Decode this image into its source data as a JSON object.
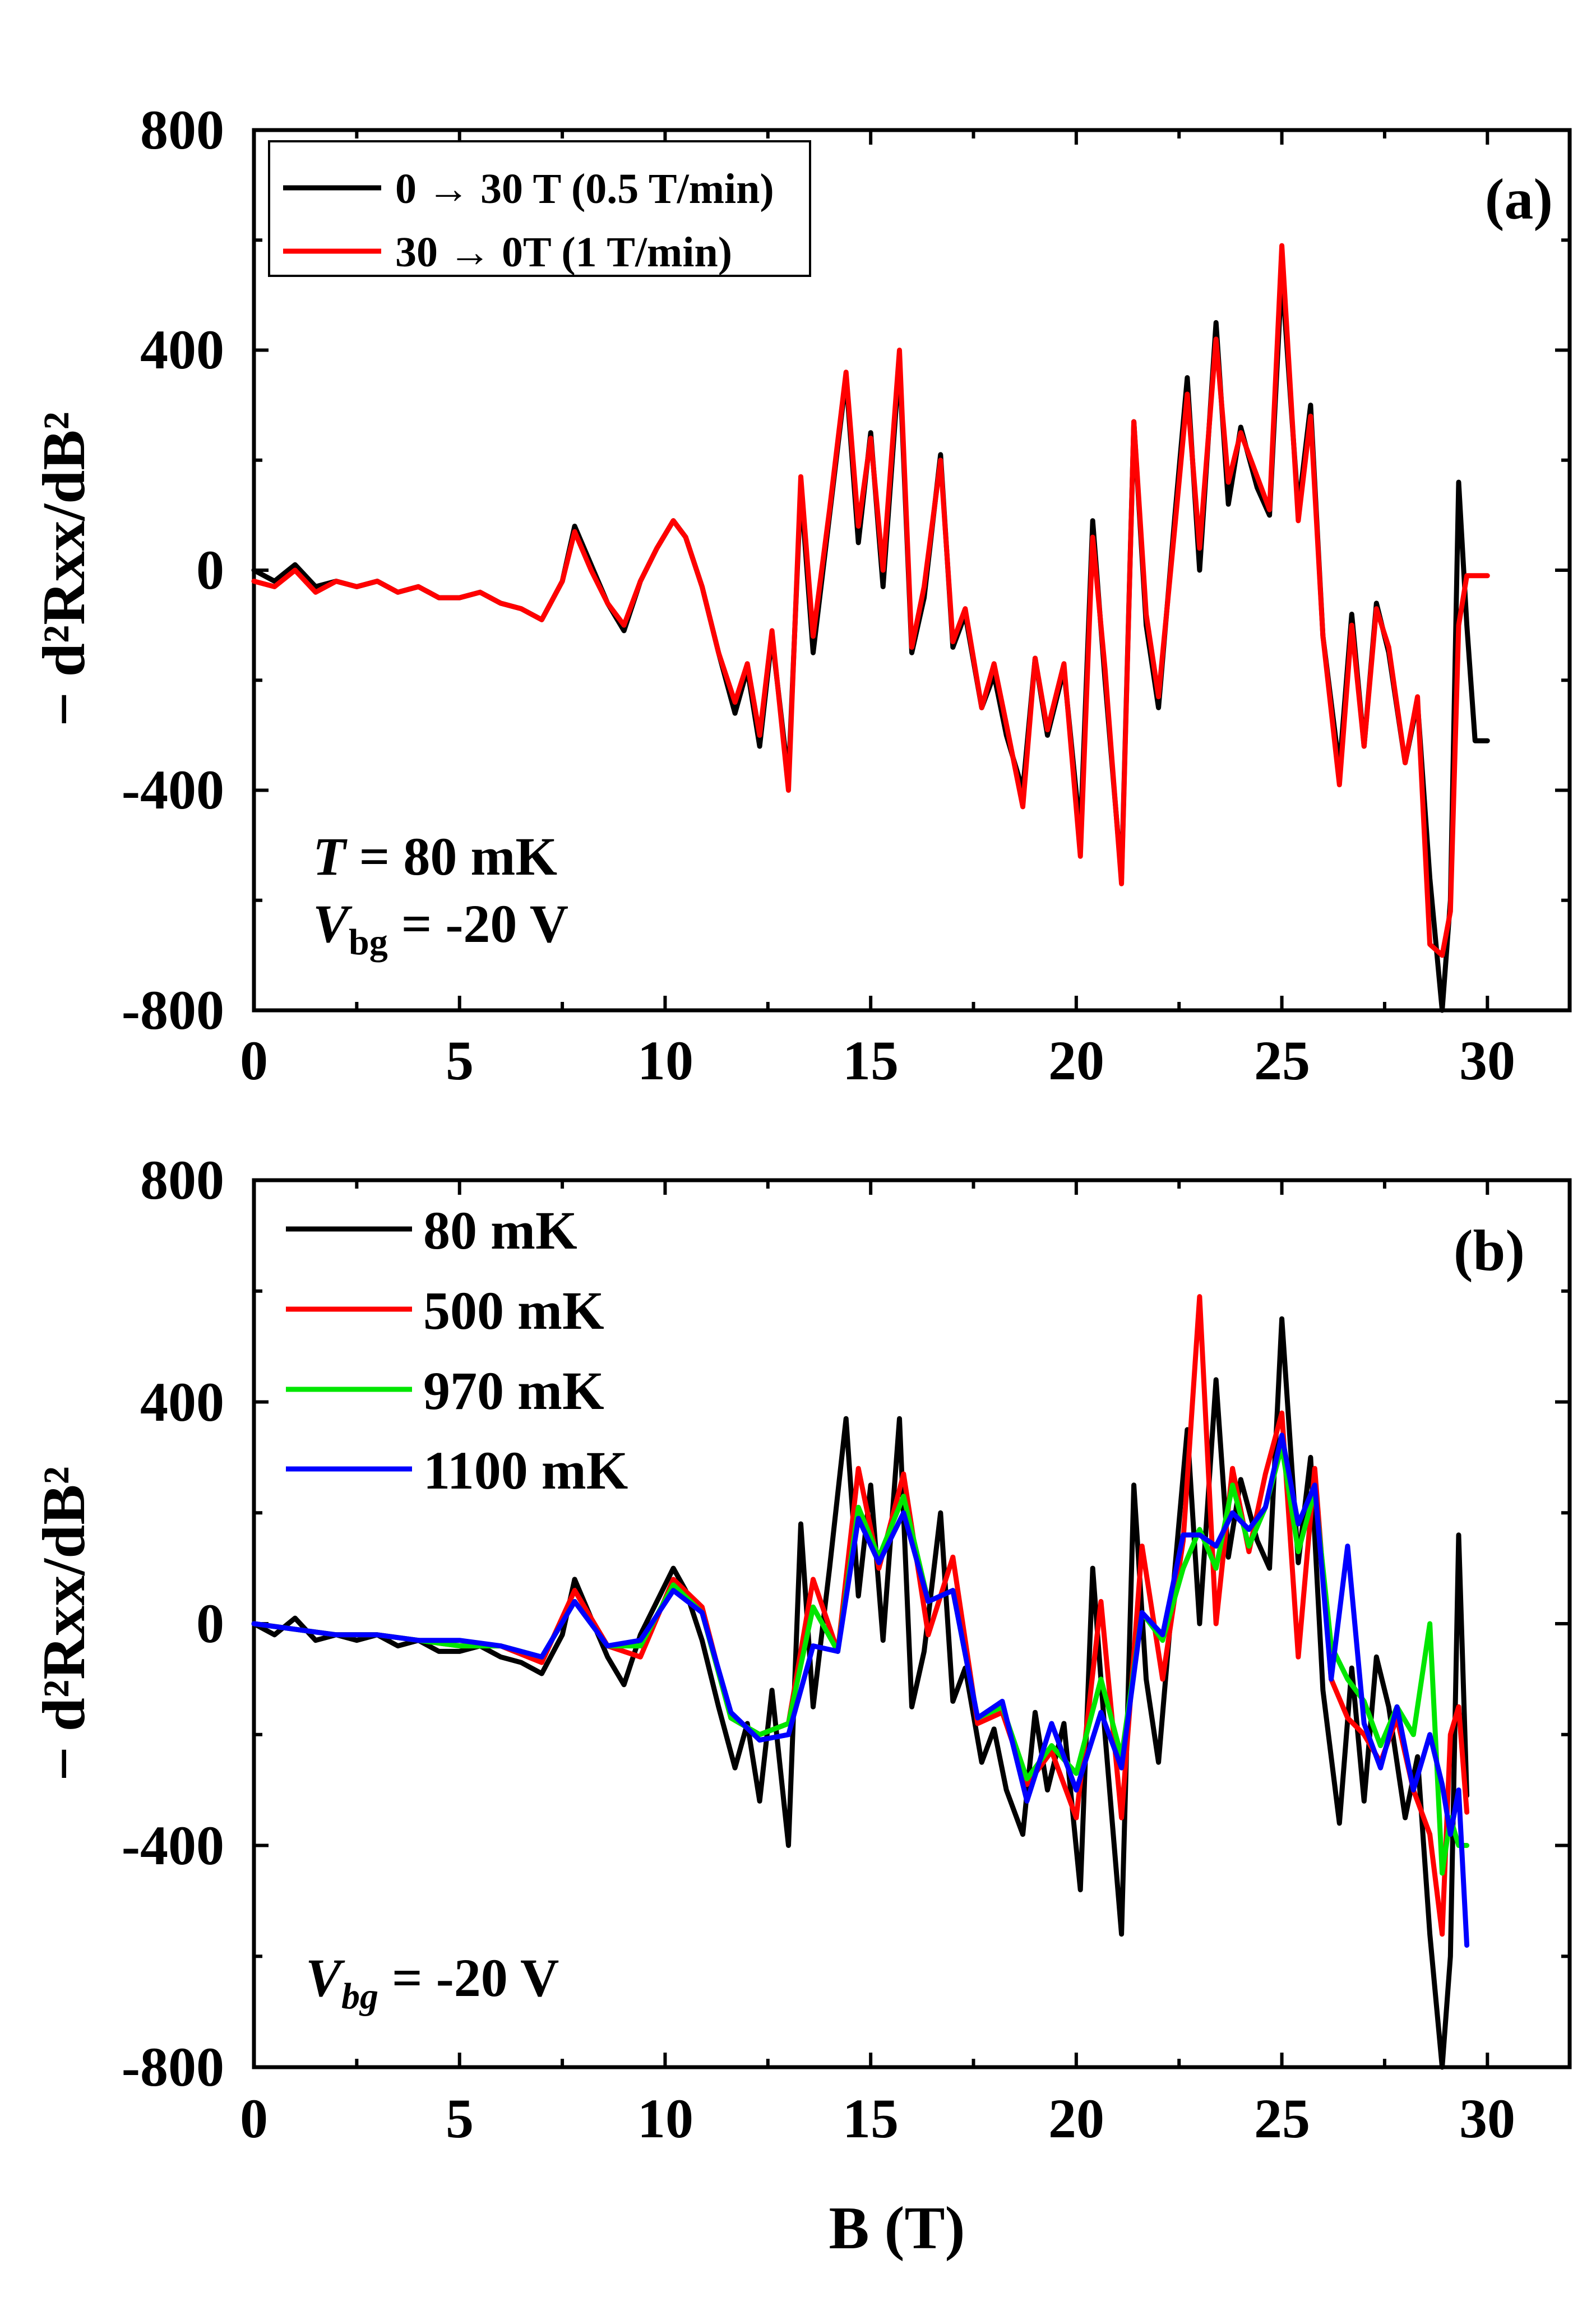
{
  "chart_data": [
    {
      "type": "line",
      "panel_label": "(a)",
      "xlabel": "",
      "ylabel": "− d²Rxx/dB²",
      "xlim": [
        0,
        32
      ],
      "ylim": [
        -800,
        800
      ],
      "x_ticks": [
        0,
        5,
        10,
        15,
        20,
        25,
        30
      ],
      "y_ticks": [
        -800,
        -400,
        0,
        400,
        800
      ],
      "x_tick_labels": [
        "0",
        "5",
        "10",
        "15",
        "20",
        "25",
        "30"
      ],
      "y_tick_labels": [
        "-800",
        "-400",
        "0",
        "400",
        "800"
      ],
      "annotations": {
        "temperature": {
          "var": "T",
          "text": " = 80 mK"
        },
        "gate": {
          "var": "V",
          "sub": "bg",
          "text": " = -20 V"
        }
      },
      "legend_position": "top-left",
      "series": [
        {
          "name": "0 → 30 T (0.5 T/min)",
          "color": "#000000",
          "x": [
            0,
            0.5,
            1,
            1.5,
            2,
            2.5,
            3,
            3.5,
            4,
            4.5,
            5,
            5.5,
            6,
            6.5,
            7,
            7.5,
            7.8,
            8.2,
            8.6,
            9,
            9.4,
            9.8,
            10.2,
            10.5,
            10.9,
            11.3,
            11.7,
            12.0,
            12.3,
            12.6,
            13.0,
            13.3,
            13.6,
            14.0,
            14.4,
            14.7,
            15.0,
            15.3,
            15.7,
            16.0,
            16.3,
            16.7,
            17.0,
            17.3,
            17.7,
            18.0,
            18.3,
            18.7,
            19.0,
            19.3,
            19.7,
            20.1,
            20.4,
            20.7,
            21.1,
            21.4,
            21.7,
            22.0,
            22.4,
            22.7,
            23.0,
            23.4,
            23.7,
            24.0,
            24.4,
            24.7,
            25.0,
            25.4,
            25.7,
            26.0,
            26.4,
            26.7,
            27.0,
            27.3,
            27.6,
            28.0,
            28.3,
            28.6,
            28.9,
            29.1,
            29.3,
            29.5,
            29.7,
            30.0
          ],
          "y": [
            0,
            -20,
            10,
            -30,
            -20,
            -30,
            -20,
            -40,
            -30,
            -50,
            -50,
            -40,
            -60,
            -70,
            -90,
            -20,
            80,
            10,
            -60,
            -110,
            -20,
            40,
            90,
            60,
            -30,
            -150,
            -260,
            -180,
            -320,
            -120,
            -380,
            150,
            -150,
            100,
            350,
            50,
            250,
            -30,
            380,
            -150,
            -50,
            210,
            -140,
            -80,
            -250,
            -190,
            -300,
            -400,
            -160,
            -300,
            -180,
            -480,
            90,
            -200,
            -560,
            270,
            -100,
            -250,
            100,
            350,
            0,
            450,
            120,
            260,
            150,
            100,
            540,
            110,
            300,
            -120,
            -360,
            -80,
            -320,
            -60,
            -150,
            -350,
            -240,
            -560,
            -800,
            -600,
            160,
            -100,
            -310,
            -310
          ]
        },
        {
          "name": "30 → 0T (1 T/min)",
          "color": "#ff0000",
          "x": [
            0,
            0.5,
            1,
            1.5,
            2,
            2.5,
            3,
            3.5,
            4,
            4.5,
            5,
            5.5,
            6,
            6.5,
            7,
            7.5,
            7.8,
            8.2,
            8.6,
            9,
            9.4,
            9.8,
            10.2,
            10.5,
            10.9,
            11.3,
            11.7,
            12.0,
            12.3,
            12.6,
            13.0,
            13.3,
            13.6,
            14.0,
            14.4,
            14.7,
            15.0,
            15.3,
            15.7,
            16.0,
            16.3,
            16.7,
            17.0,
            17.3,
            17.7,
            18.0,
            18.3,
            18.7,
            19.0,
            19.3,
            19.7,
            20.1,
            20.4,
            20.7,
            21.1,
            21.4,
            21.7,
            22.0,
            22.4,
            22.7,
            23.0,
            23.4,
            23.7,
            24.0,
            24.4,
            24.7,
            25.0,
            25.4,
            25.7,
            26.0,
            26.4,
            26.7,
            27.0,
            27.3,
            27.6,
            28.0,
            28.3,
            28.6,
            28.9,
            29.1,
            29.3,
            29.5,
            29.7,
            30.0
          ],
          "y": [
            -20,
            -30,
            0,
            -40,
            -20,
            -30,
            -20,
            -40,
            -30,
            -50,
            -50,
            -40,
            -60,
            -70,
            -90,
            -20,
            70,
            0,
            -60,
            -100,
            -20,
            40,
            90,
            60,
            -30,
            -150,
            -240,
            -170,
            -300,
            -110,
            -400,
            170,
            -120,
            110,
            360,
            80,
            240,
            0,
            400,
            -140,
            -30,
            200,
            -130,
            -70,
            -250,
            -170,
            -280,
            -430,
            -160,
            -290,
            -170,
            -520,
            60,
            -180,
            -570,
            270,
            -80,
            -230,
            80,
            320,
            40,
            420,
            160,
            250,
            170,
            110,
            590,
            90,
            280,
            -120,
            -390,
            -100,
            -320,
            -70,
            -140,
            -350,
            -230,
            -680,
            -700,
            -620,
            -100,
            -10,
            -10,
            -10
          ]
        }
      ]
    },
    {
      "type": "line",
      "panel_label": "(b)",
      "xlabel": "B (T)",
      "ylabel": "− d²Rxx/dB²",
      "xlim": [
        0,
        32
      ],
      "ylim": [
        -800,
        800
      ],
      "x_ticks": [
        0,
        5,
        10,
        15,
        20,
        25,
        30
      ],
      "y_ticks": [
        -800,
        -400,
        0,
        400,
        800
      ],
      "x_tick_labels": [
        "0",
        "5",
        "10",
        "15",
        "20",
        "25",
        "30"
      ],
      "y_tick_labels": [
        "-800",
        "-400",
        "0",
        "400",
        "800"
      ],
      "annotations": {
        "gate": {
          "var": "V",
          "sub": "bg",
          "text": " =  -20 V"
        }
      },
      "legend_position": "top-left",
      "series": [
        {
          "name": "80 mK",
          "color": "#000000",
          "x": [
            0,
            0.5,
            1,
            1.5,
            2,
            2.5,
            3,
            3.5,
            4,
            4.5,
            5,
            5.5,
            6,
            6.5,
            7,
            7.5,
            7.8,
            8.2,
            8.6,
            9,
            9.4,
            9.8,
            10.2,
            10.5,
            10.9,
            11.3,
            11.7,
            12.0,
            12.3,
            12.6,
            13.0,
            13.3,
            13.6,
            14.0,
            14.4,
            14.7,
            15.0,
            15.3,
            15.7,
            16.0,
            16.3,
            16.7,
            17.0,
            17.3,
            17.7,
            18.0,
            18.3,
            18.7,
            19.0,
            19.3,
            19.7,
            20.1,
            20.4,
            20.7,
            21.1,
            21.4,
            21.7,
            22.0,
            22.4,
            22.7,
            23.0,
            23.4,
            23.7,
            24.0,
            24.4,
            24.7,
            25.0,
            25.4,
            25.7,
            26.0,
            26.4,
            26.7,
            27.0,
            27.3,
            27.6,
            28.0,
            28.3,
            28.6,
            28.9,
            29.1,
            29.3,
            29.5
          ],
          "y": [
            0,
            -20,
            10,
            -30,
            -20,
            -30,
            -20,
            -40,
            -30,
            -50,
            -50,
            -40,
            -60,
            -70,
            -90,
            -20,
            80,
            10,
            -60,
            -110,
            -20,
            40,
            100,
            60,
            -30,
            -150,
            -260,
            -180,
            -320,
            -120,
            -400,
            180,
            -150,
            100,
            370,
            50,
            250,
            -30,
            370,
            -150,
            -50,
            200,
            -140,
            -80,
            -250,
            -190,
            -300,
            -380,
            -160,
            -300,
            -180,
            -480,
            100,
            -200,
            -560,
            250,
            -100,
            -250,
            100,
            350,
            0,
            440,
            120,
            260,
            150,
            100,
            550,
            110,
            300,
            -120,
            -360,
            -80,
            -320,
            -60,
            -150,
            -350,
            -240,
            -560,
            -800,
            -600,
            160,
            -310
          ]
        },
        {
          "name": "500 mK",
          "color": "#ff0000",
          "x": [
            0,
            1,
            2,
            3,
            4,
            5,
            6,
            7,
            7.8,
            8.6,
            9.4,
            10.2,
            10.9,
            11.6,
            12.3,
            13.0,
            13.6,
            14.2,
            14.7,
            15.2,
            15.8,
            16.4,
            17.0,
            17.6,
            18.2,
            18.8,
            19.4,
            20.0,
            20.6,
            21.1,
            21.6,
            22.1,
            22.6,
            23.0,
            23.4,
            23.8,
            24.2,
            24.6,
            25.0,
            25.4,
            25.8,
            26.2,
            26.6,
            27.0,
            27.4,
            27.8,
            28.2,
            28.6,
            28.9,
            29.1,
            29.3,
            29.5
          ],
          "y": [
            0,
            -10,
            -20,
            -20,
            -30,
            -40,
            -40,
            -70,
            60,
            -40,
            -60,
            80,
            30,
            -170,
            -200,
            -180,
            80,
            -50,
            280,
            100,
            270,
            -20,
            120,
            -180,
            -160,
            -290,
            -230,
            -350,
            40,
            -350,
            140,
            -100,
            150,
            590,
            0,
            280,
            130,
            270,
            380,
            -60,
            280,
            -100,
            -170,
            -200,
            -250,
            -170,
            -300,
            -380,
            -560,
            -200,
            -150,
            -340
          ]
        },
        {
          "name": "970 mK",
          "color": "#00e600",
          "x": [
            0,
            1,
            2,
            3,
            4,
            5,
            6,
            7,
            7.8,
            8.6,
            9.4,
            10.2,
            10.9,
            11.6,
            12.3,
            13.0,
            13.6,
            14.2,
            14.7,
            15.2,
            15.8,
            16.4,
            17.0,
            17.6,
            18.2,
            18.8,
            19.4,
            20.0,
            20.6,
            21.1,
            21.6,
            22.1,
            22.6,
            23.0,
            23.4,
            23.8,
            24.2,
            24.6,
            25.0,
            25.4,
            25.8,
            26.2,
            26.6,
            27.0,
            27.4,
            27.8,
            28.2,
            28.6,
            28.9,
            29.1,
            29.3,
            29.5
          ],
          "y": [
            0,
            -10,
            -20,
            -20,
            -30,
            -40,
            -40,
            -60,
            40,
            -40,
            -40,
            70,
            20,
            -170,
            -200,
            -180,
            30,
            -50,
            210,
            120,
            230,
            40,
            60,
            -170,
            -150,
            -280,
            -220,
            -270,
            -100,
            -240,
            20,
            -30,
            100,
            170,
            100,
            250,
            140,
            210,
            320,
            130,
            240,
            -40,
            -100,
            -140,
            -220,
            -150,
            -200,
            0,
            -450,
            -350,
            -400,
            -400
          ]
        },
        {
          "name": "1100 mK",
          "color": "#0000ff",
          "x": [
            0,
            1,
            2,
            3,
            4,
            5,
            6,
            7,
            7.8,
            8.6,
            9.4,
            10.2,
            10.9,
            11.6,
            12.3,
            13.0,
            13.6,
            14.2,
            14.7,
            15.2,
            15.8,
            16.4,
            17.0,
            17.6,
            18.2,
            18.8,
            19.4,
            20.0,
            20.6,
            21.1,
            21.6,
            22.1,
            22.6,
            23.0,
            23.4,
            23.8,
            24.2,
            24.6,
            25.0,
            25.4,
            25.8,
            26.2,
            26.6,
            27.0,
            27.4,
            27.8,
            28.2,
            28.6,
            28.9,
            29.1,
            29.3,
            29.5
          ],
          "y": [
            0,
            -10,
            -20,
            -20,
            -30,
            -30,
            -40,
            -60,
            40,
            -40,
            -30,
            60,
            20,
            -160,
            -210,
            -200,
            -40,
            -50,
            190,
            110,
            200,
            40,
            60,
            -170,
            -140,
            -320,
            -180,
            -300,
            -160,
            -260,
            20,
            -20,
            160,
            160,
            140,
            200,
            170,
            210,
            340,
            180,
            250,
            -100,
            140,
            -180,
            -260,
            -150,
            -300,
            -200,
            -290,
            -380,
            -300,
            -580
          ]
        }
      ]
    }
  ]
}
